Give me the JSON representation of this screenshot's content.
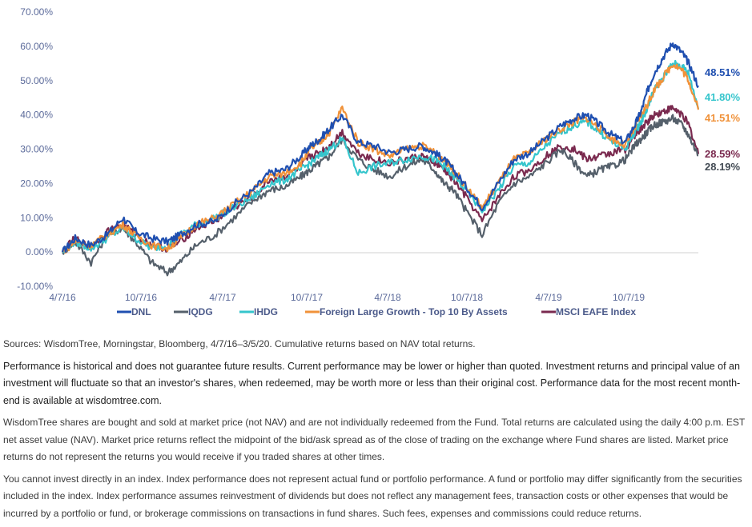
{
  "chart_data": {
    "type": "line",
    "title": "",
    "xlabel": "",
    "ylabel": "",
    "ylim": [
      -10,
      70
    ],
    "yticks": [
      "70.00%",
      "60.00%",
      "50.00%",
      "40.00%",
      "30.00%",
      "20.00%",
      "10.00%",
      "0.00%",
      "-10.00%"
    ],
    "ytick_values": [
      70,
      60,
      50,
      40,
      30,
      20,
      10,
      0,
      -10
    ],
    "xticks": [
      "4/7/16",
      "10/7/16",
      "4/7/17",
      "10/7/17",
      "4/7/18",
      "10/7/18",
      "4/7/19",
      "10/7/19"
    ],
    "x": [
      0,
      0.02,
      0.045,
      0.07,
      0.095,
      0.115,
      0.14,
      0.165,
      0.185,
      0.21,
      0.24,
      0.27,
      0.3,
      0.325,
      0.35,
      0.375,
      0.39,
      0.405,
      0.42,
      0.44,
      0.465,
      0.49,
      0.515,
      0.54,
      0.565,
      0.585,
      0.6,
      0.615,
      0.635,
      0.66,
      0.685,
      0.71,
      0.735,
      0.76,
      0.785,
      0.805,
      0.825,
      0.845,
      0.865,
      0.885,
      0.9,
      0.91,
      0.92,
      0.93,
      0.945,
      0.96,
      0.975,
      0.985,
      1.0
    ],
    "grid": false,
    "legend_position": "bottom",
    "series": [
      {
        "name": "DNL",
        "color": "#1f4fb0",
        "end_label": "48.51%",
        "values": [
          0,
          4,
          2,
          5,
          10,
          6,
          4,
          3,
          5,
          8,
          9,
          14,
          18,
          23,
          24,
          28,
          31,
          33,
          36,
          40,
          32,
          31,
          29,
          30,
          31,
          29,
          27,
          24,
          19,
          13,
          20,
          27,
          29,
          33,
          37,
          39,
          40,
          37,
          34,
          32,
          37,
          41,
          47,
          52,
          57,
          61,
          58,
          55,
          48.51
        ]
      },
      {
        "name": "IQDG",
        "color": "#55606b",
        "end_label": "28.19%",
        "values": [
          0,
          3,
          -3,
          5,
          7,
          3,
          -3,
          -6,
          -3,
          2,
          5,
          10,
          15,
          18,
          19,
          22,
          24,
          26,
          28,
          33,
          27,
          24,
          22,
          25,
          27,
          24,
          20,
          18,
          12,
          5,
          14,
          20,
          22,
          26,
          30,
          26,
          22,
          24,
          25,
          27,
          31,
          33,
          35,
          37,
          38,
          39,
          37,
          34,
          28.19
        ]
      },
      {
        "name": "IHDG",
        "color": "#35c5cc",
        "end_label": "41.80%",
        "values": [
          0,
          3,
          1,
          4,
          7,
          4,
          1,
          2,
          5,
          8,
          10,
          13,
          16,
          20,
          21,
          24,
          26,
          28,
          30,
          33,
          23,
          25,
          26,
          27,
          28,
          27,
          25,
          22,
          18,
          12,
          18,
          25,
          26,
          31,
          35,
          37,
          38,
          35,
          32,
          30,
          35,
          38,
          42,
          47,
          51,
          55,
          54,
          52,
          41.8
        ]
      },
      {
        "name": "Foreign Large Growth - Top 10 By Assets",
        "color": "#f0923a",
        "end_label": "41.51%",
        "values": [
          0,
          3,
          2,
          5,
          8,
          5,
          2,
          1,
          4,
          8,
          10,
          14,
          18,
          22,
          23,
          26,
          30,
          32,
          35,
          42,
          32,
          30,
          28,
          30,
          31,
          29,
          27,
          24,
          19,
          13,
          20,
          27,
          29,
          33,
          36,
          38,
          39,
          36,
          33,
          31,
          36,
          40,
          43,
          47,
          51,
          55,
          53,
          50,
          41.51
        ]
      },
      {
        "name": "MSCI EAFE Index",
        "color": "#7a2a4f",
        "end_label": "28.59%",
        "values": [
          0,
          4,
          1,
          6,
          8,
          5,
          2,
          1,
          3,
          7,
          9,
          13,
          16,
          21,
          22,
          25,
          28,
          29,
          31,
          35,
          29,
          27,
          26,
          27,
          28,
          26,
          24,
          21,
          16,
          9,
          16,
          22,
          24,
          28,
          31,
          30,
          27,
          28,
          29,
          30,
          34,
          36,
          38,
          40,
          41,
          42,
          40,
          37,
          28.59
        ]
      }
    ]
  },
  "notes": {
    "sources": "Sources: WisdomTree, Morningstar, Bloomberg, 4/7/16–3/5/20. Cumulative returns based on NAV total returns.",
    "performance": "Performance is historical and does not guarantee future results. Current performance may be lower or higher than quoted. Investment returns and principal value of an investment will fluctuate so that an investor's shares, when redeemed, may be worth more or less than their original cost. Performance data for the most recent month-end is available at wisdomtree.com.",
    "shares": "WisdomTree shares are bought and sold at market price (not NAV) and are not individually redeemed from the Fund. Total returns are calculated using the daily 4:00 p.m. EST net asset value (NAV). Market price returns reflect the midpoint of the bid/ask spread as of the close of trading on the exchange where Fund shares are listed. Market price returns do not represent the returns you would receive if you traded shares at other times.",
    "index": "You cannot invest directly in an index. Index performance does not represent actual fund or portfolio performance. A fund or portfolio may differ significantly from the securities included in the index. Index performance assumes reinvestment of dividends but does not reflect any management fees, transaction costs or other expenses that would be incurred by a portfolio or fund, or brokerage commissions on transactions in fund shares. Such fees, expenses and commissions could reduce returns."
  }
}
